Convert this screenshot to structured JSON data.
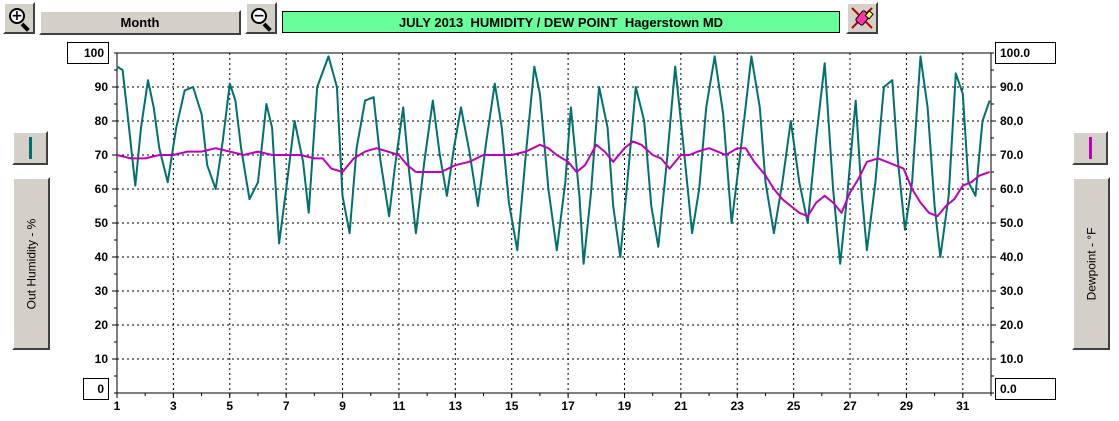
{
  "toolbar": {
    "zoom_in_icon": "zoom-in-icon",
    "zoom_out_icon": "zoom-out-icon",
    "eraser_icon": "eraser-icon",
    "period_label": "Month",
    "title": "JULY 2013  HUMIDITY / DEW POINT  Hagerstown MD"
  },
  "colors": {
    "humidity": "#007070",
    "dewpoint": "#c000c0",
    "title_bg": "#66ff99",
    "button_face": "#d4d0c8"
  },
  "left_axis": {
    "label": "Out Humidity - %",
    "max_box": "100",
    "min_box": "0"
  },
  "right_axis": {
    "label": "Dewpoint - °F",
    "max_box": "100.0",
    "min_box": "0.0"
  },
  "chart_data": {
    "type": "line",
    "title": "JULY 2013  HUMIDITY / DEW POINT  Hagerstown MD",
    "xlim": [
      1,
      32
    ],
    "ylim": [
      0,
      100
    ],
    "x_tick_labels": [
      "1",
      "3",
      "5",
      "7",
      "9",
      "11",
      "13",
      "15",
      "17",
      "19",
      "21",
      "23",
      "25",
      "27",
      "29",
      "31"
    ],
    "y_left_tick_labels": [
      "10",
      "20",
      "30",
      "40",
      "50",
      "60",
      "70",
      "80",
      "90"
    ],
    "y_right_tick_labels": [
      "10.0",
      "20.0",
      "30.0",
      "40.0",
      "50.0",
      "60.0",
      "70.0",
      "80.0",
      "90.0"
    ],
    "grid": true,
    "series": [
      {
        "name": "Out Humidity - %",
        "axis": "left",
        "points": [
          [
            1.0,
            96
          ],
          [
            1.2,
            95
          ],
          [
            1.4,
            80
          ],
          [
            1.65,
            61
          ],
          [
            1.85,
            78
          ],
          [
            2.1,
            92
          ],
          [
            2.3,
            84
          ],
          [
            2.5,
            72
          ],
          [
            2.8,
            62
          ],
          [
            3.1,
            78
          ],
          [
            3.4,
            89
          ],
          [
            3.7,
            90
          ],
          [
            4.0,
            82
          ],
          [
            4.2,
            67
          ],
          [
            4.5,
            60
          ],
          [
            4.75,
            74
          ],
          [
            5.0,
            91
          ],
          [
            5.2,
            86
          ],
          [
            5.4,
            72
          ],
          [
            5.7,
            57
          ],
          [
            6.0,
            62
          ],
          [
            6.3,
            85
          ],
          [
            6.5,
            78
          ],
          [
            6.75,
            44
          ],
          [
            7.0,
            60
          ],
          [
            7.3,
            80
          ],
          [
            7.6,
            68
          ],
          [
            7.8,
            53
          ],
          [
            8.1,
            90
          ],
          [
            8.5,
            99
          ],
          [
            8.8,
            90
          ],
          [
            9.0,
            58
          ],
          [
            9.25,
            47
          ],
          [
            9.5,
            72
          ],
          [
            9.8,
            86
          ],
          [
            10.1,
            87
          ],
          [
            10.35,
            68
          ],
          [
            10.65,
            52
          ],
          [
            10.85,
            66
          ],
          [
            11.15,
            84
          ],
          [
            11.35,
            66
          ],
          [
            11.6,
            47
          ],
          [
            11.9,
            68
          ],
          [
            12.2,
            86
          ],
          [
            12.45,
            70
          ],
          [
            12.7,
            58
          ],
          [
            12.95,
            72
          ],
          [
            13.2,
            84
          ],
          [
            13.5,
            71
          ],
          [
            13.8,
            55
          ],
          [
            14.1,
            74
          ],
          [
            14.4,
            91
          ],
          [
            14.65,
            78
          ],
          [
            14.9,
            56
          ],
          [
            15.2,
            42
          ],
          [
            15.5,
            70
          ],
          [
            15.8,
            96
          ],
          [
            16.0,
            88
          ],
          [
            16.3,
            60
          ],
          [
            16.6,
            42
          ],
          [
            16.9,
            62
          ],
          [
            17.1,
            84
          ],
          [
            17.4,
            58
          ],
          [
            17.55,
            38
          ],
          [
            17.8,
            58
          ],
          [
            18.1,
            90
          ],
          [
            18.4,
            78
          ],
          [
            18.6,
            55
          ],
          [
            18.85,
            40
          ],
          [
            19.1,
            62
          ],
          [
            19.4,
            90
          ],
          [
            19.7,
            80
          ],
          [
            19.95,
            55
          ],
          [
            20.2,
            43
          ],
          [
            20.5,
            68
          ],
          [
            20.8,
            96
          ],
          [
            21.1,
            72
          ],
          [
            21.4,
            47
          ],
          [
            21.65,
            60
          ],
          [
            21.9,
            84
          ],
          [
            22.2,
            99
          ],
          [
            22.5,
            82
          ],
          [
            22.8,
            50
          ],
          [
            23.1,
            70
          ],
          [
            23.5,
            99
          ],
          [
            23.8,
            84
          ],
          [
            24.0,
            62
          ],
          [
            24.3,
            47
          ],
          [
            24.6,
            62
          ],
          [
            24.9,
            80
          ],
          [
            25.2,
            62
          ],
          [
            25.5,
            50
          ],
          [
            25.8,
            75
          ],
          [
            26.1,
            97
          ],
          [
            26.4,
            60
          ],
          [
            26.65,
            38
          ],
          [
            26.9,
            58
          ],
          [
            27.2,
            86
          ],
          [
            27.4,
            60
          ],
          [
            27.6,
            42
          ],
          [
            27.9,
            62
          ],
          [
            28.2,
            90
          ],
          [
            28.5,
            92
          ],
          [
            28.7,
            68
          ],
          [
            28.95,
            48
          ],
          [
            29.2,
            62
          ],
          [
            29.5,
            99
          ],
          [
            29.75,
            84
          ],
          [
            30.0,
            55
          ],
          [
            30.2,
            40
          ],
          [
            30.5,
            58
          ],
          [
            30.75,
            94
          ],
          [
            31.0,
            88
          ],
          [
            31.2,
            62
          ],
          [
            31.45,
            58
          ],
          [
            31.7,
            80
          ],
          [
            31.95,
            86
          ]
        ]
      },
      {
        "name": "Dewpoint - °F",
        "axis": "right",
        "points": [
          [
            1.0,
            70
          ],
          [
            1.5,
            69
          ],
          [
            2.0,
            69
          ],
          [
            2.5,
            70
          ],
          [
            3.0,
            70
          ],
          [
            3.5,
            71
          ],
          [
            4.0,
            71
          ],
          [
            4.5,
            72
          ],
          [
            5.0,
            71
          ],
          [
            5.5,
            70
          ],
          [
            6.0,
            71
          ],
          [
            6.5,
            70
          ],
          [
            7.0,
            70
          ],
          [
            7.5,
            70
          ],
          [
            8.0,
            69
          ],
          [
            8.3,
            69
          ],
          [
            8.6,
            66
          ],
          [
            9.0,
            65
          ],
          [
            9.4,
            69
          ],
          [
            9.8,
            71
          ],
          [
            10.2,
            72
          ],
          [
            10.6,
            71
          ],
          [
            11.0,
            70
          ],
          [
            11.3,
            67
          ],
          [
            11.6,
            65
          ],
          [
            12.0,
            65
          ],
          [
            12.5,
            65
          ],
          [
            13.0,
            67
          ],
          [
            13.5,
            68
          ],
          [
            14.0,
            70
          ],
          [
            14.5,
            70
          ],
          [
            15.0,
            70
          ],
          [
            15.5,
            71
          ],
          [
            16.0,
            73
          ],
          [
            16.3,
            72
          ],
          [
            16.6,
            70
          ],
          [
            17.0,
            68
          ],
          [
            17.3,
            65
          ],
          [
            17.6,
            67
          ],
          [
            18.0,
            73
          ],
          [
            18.3,
            71
          ],
          [
            18.6,
            68
          ],
          [
            19.0,
            72
          ],
          [
            19.3,
            74
          ],
          [
            19.6,
            73
          ],
          [
            20.0,
            70
          ],
          [
            20.3,
            69
          ],
          [
            20.6,
            66
          ],
          [
            21.0,
            70
          ],
          [
            21.3,
            70
          ],
          [
            21.6,
            71
          ],
          [
            22.0,
            72
          ],
          [
            22.3,
            71
          ],
          [
            22.6,
            70
          ],
          [
            23.0,
            72
          ],
          [
            23.3,
            72
          ],
          [
            23.6,
            68
          ],
          [
            24.0,
            64
          ],
          [
            24.3,
            60
          ],
          [
            24.6,
            57
          ],
          [
            24.9,
            55
          ],
          [
            25.2,
            53
          ],
          [
            25.5,
            52
          ],
          [
            25.8,
            56
          ],
          [
            26.1,
            58
          ],
          [
            26.4,
            56
          ],
          [
            26.7,
            53
          ],
          [
            27.0,
            59
          ],
          [
            27.3,
            63
          ],
          [
            27.6,
            68
          ],
          [
            28.0,
            69
          ],
          [
            28.3,
            68
          ],
          [
            28.6,
            67
          ],
          [
            28.9,
            66
          ],
          [
            29.2,
            60
          ],
          [
            29.5,
            56
          ],
          [
            29.8,
            53
          ],
          [
            30.1,
            52
          ],
          [
            30.4,
            55
          ],
          [
            30.7,
            57
          ],
          [
            31.0,
            61
          ],
          [
            31.3,
            62
          ],
          [
            31.6,
            64
          ],
          [
            31.95,
            65
          ]
        ]
      }
    ]
  }
}
